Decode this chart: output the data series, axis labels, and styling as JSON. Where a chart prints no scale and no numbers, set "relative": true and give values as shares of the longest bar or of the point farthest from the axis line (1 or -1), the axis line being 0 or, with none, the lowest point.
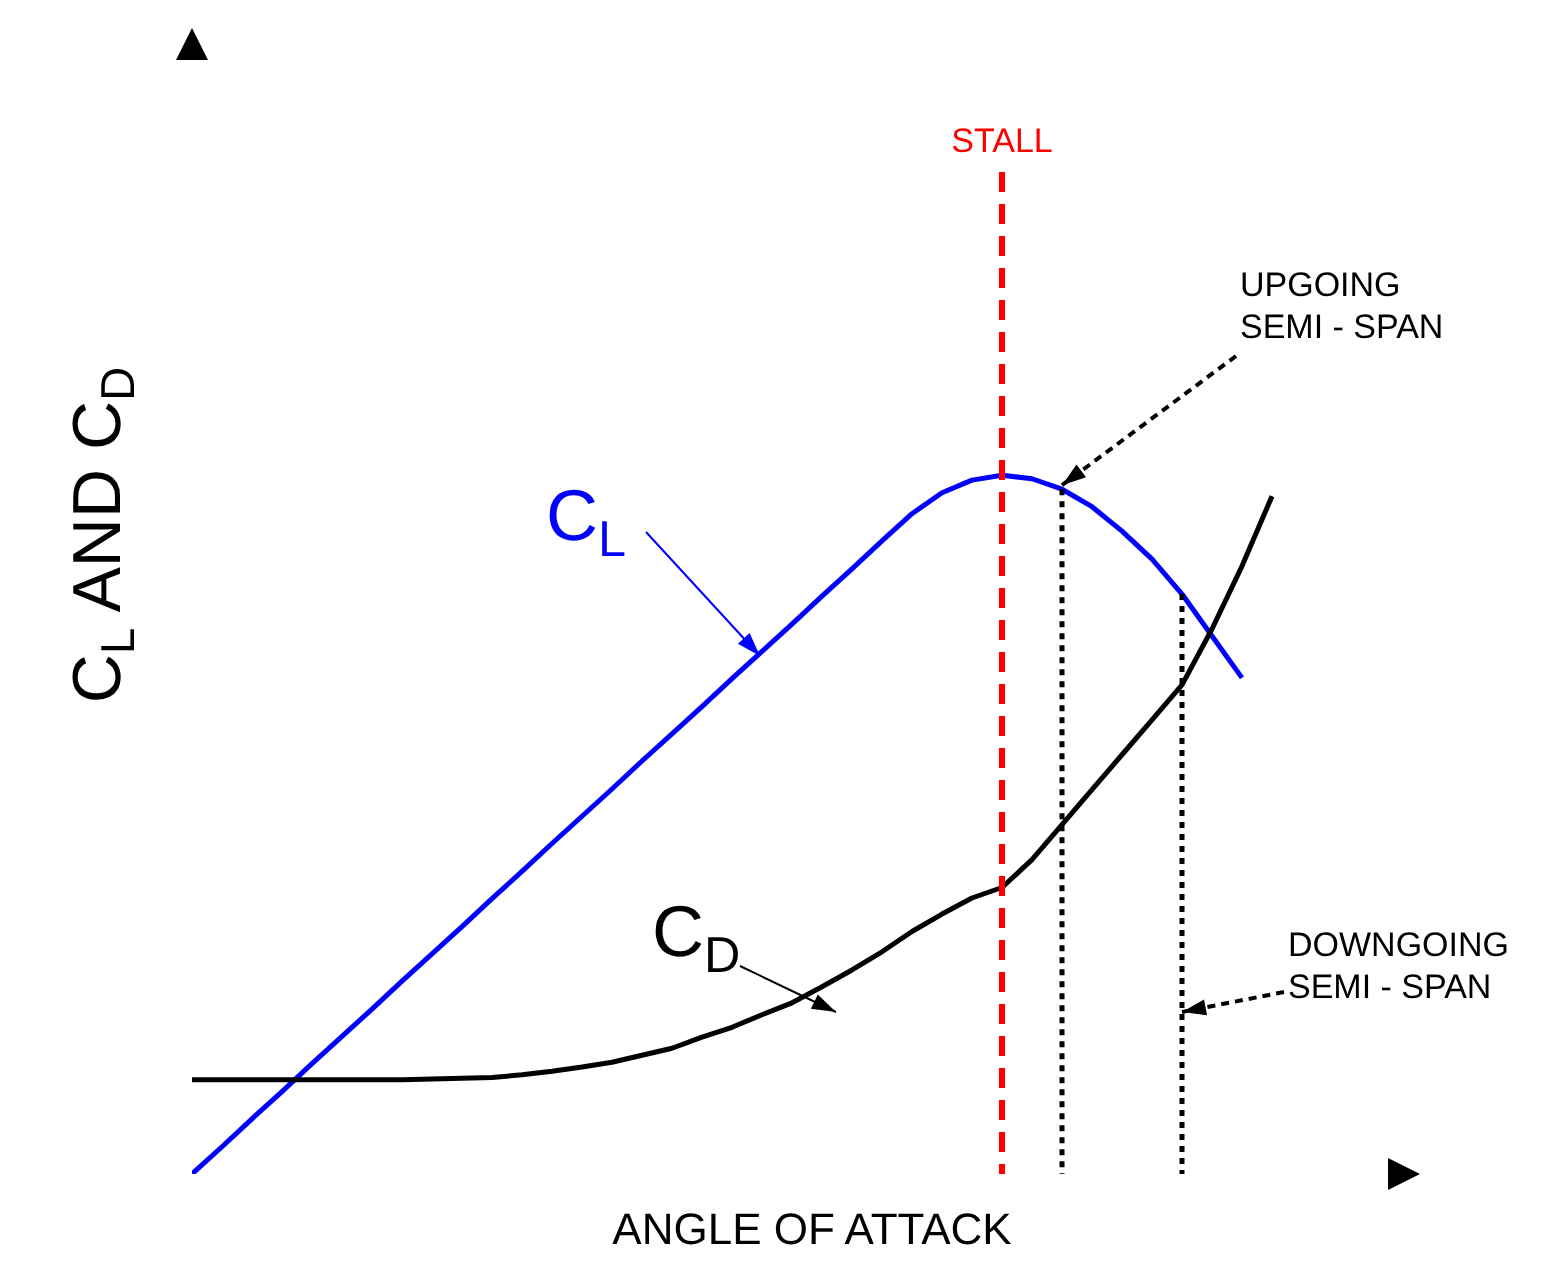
{
  "chart_data": {
    "type": "line",
    "relative": true,
    "xlabel": "ANGLE OF ATTACK",
    "ylabel": "C$_{L}$ AND C$_{D}$",
    "tick_labels": false,
    "marker": "none",
    "line_style": "solid",
    "categories": [
      null,
      null,
      null,
      null,
      null,
      null,
      null,
      null,
      null,
      null,
      null,
      null,
      null,
      null,
      null,
      null,
      null,
      null,
      null,
      null,
      null,
      null,
      null,
      null,
      null,
      null,
      null,
      null,
      null,
      null,
      null,
      null,
      null,
      null,
      null,
      null,
      null,
      null,
      null,
      null,
      null
    ],
    "series": [
      {
        "name": "C$_{L}$",
        "color": "#0000ff",
        "values": [
          0,
          0.039,
          0.079,
          0.118,
          0.158,
          0.197,
          0.236,
          0.276,
          0.315,
          0.354,
          0.394,
          0.433,
          0.473,
          0.512,
          0.551,
          0.591,
          0.63,
          0.669,
          0.709,
          0.748,
          0.787,
          0.827,
          0.866,
          0.906,
          0.945,
          0.975,
          0.993,
          1,
          0.995,
          0.98,
          0.955,
          0.92,
          0.88,
          0.83,
          0.77,
          0.71,
          null,
          null,
          null,
          null,
          null
        ]
      },
      {
        "name": "C$_{D}$",
        "color": "#000000",
        "values": [
          0.135,
          0.135,
          0.135,
          0.135,
          0.135,
          0.135,
          0.135,
          0.135,
          0.136,
          0.137,
          0.138,
          0.142,
          0.147,
          0.153,
          0.16,
          0.17,
          0.18,
          0.196,
          0.21,
          0.228,
          0.245,
          0.268,
          0.292,
          0.318,
          0.347,
          0.372,
          0.395,
          0.41,
          0.45,
          0.5,
          0.55,
          0.6,
          0.65,
          0.7,
          0.78,
          0.87,
          0.97,
          null,
          null,
          null,
          null
        ]
      }
    ],
    "annotations": [
      "STALL",
      "UPGOING\nSEMI - SPAN",
      "DOWNGOING\nSEMI - SPAN"
    ]
  }
}
